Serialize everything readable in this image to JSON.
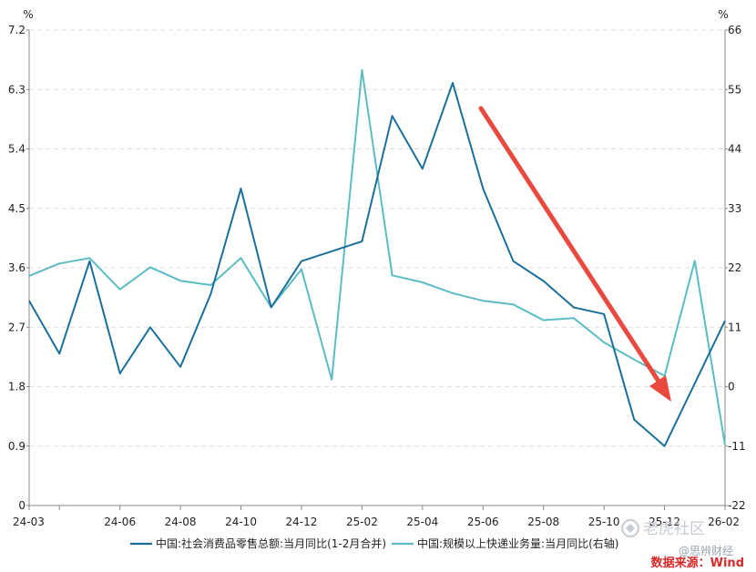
{
  "chart_data": {
    "type": "line",
    "left_axis": {
      "unit": "%",
      "ticks": [
        "0",
        "0.9",
        "1.8",
        "2.7",
        "3.6",
        "4.5",
        "5.4",
        "6.3",
        "7.2"
      ],
      "range": [
        0,
        7.2
      ]
    },
    "right_axis": {
      "unit": "%",
      "ticks": [
        "-22",
        "-11",
        "0",
        "11",
        "22",
        "33",
        "44",
        "55",
        "66"
      ],
      "range": [
        -22,
        66
      ]
    },
    "x_ticks": [
      "24-03",
      "24-06",
      "24-08",
      "24-10",
      "24-12",
      "25-02",
      "25-04",
      "25-06",
      "25-08",
      "25-10",
      "25-12",
      "26-02"
    ],
    "x": [
      "24-03",
      "24-04",
      "24-05",
      "24-06",
      "24-07",
      "24-08",
      "24-09",
      "24-10",
      "24-11",
      "24-12",
      "25-01",
      "25-02",
      "25-03",
      "25-04",
      "25-05",
      "25-06",
      "25-07",
      "25-08",
      "25-09",
      "25-10",
      "25-11",
      "25-12",
      "26-01",
      "26-02"
    ],
    "grid": true,
    "legend_position": "bottom",
    "series": [
      {
        "name": "中国:社会消费品零售总额:当月同比(1-2月合并)",
        "axis": "left",
        "color": "#1b6f98",
        "values": [
          3.1,
          2.3,
          3.7,
          2.0,
          2.7,
          2.1,
          3.2,
          4.8,
          3.0,
          3.7,
          3.85,
          4.0,
          5.9,
          5.1,
          6.4,
          4.8,
          3.7,
          3.4,
          3.0,
          2.9,
          1.3,
          0.9,
          1.85,
          2.8
        ]
      },
      {
        "name": "中国:规模以上快递业务量:当月同比(右轴)",
        "axis": "right",
        "color": "#5cbcc4",
        "values": [
          20.5,
          22.8,
          23.8,
          18.0,
          22.1,
          19.6,
          18.8,
          23.8,
          14.7,
          21.7,
          1.3,
          58.6,
          20.6,
          19.3,
          17.3,
          15.9,
          15.2,
          12.3,
          12.7,
          8.2,
          5.0,
          2.0,
          23.3,
          -10.8
        ]
      }
    ],
    "source": "数据来源：Wind"
  },
  "watermark": {
    "tiger_logo": "老虎社区",
    "brand": "@思辨财经"
  },
  "colors": {
    "trend_arrow": "#e84a3f",
    "grid": "#dddddd",
    "axis": "#888888"
  }
}
